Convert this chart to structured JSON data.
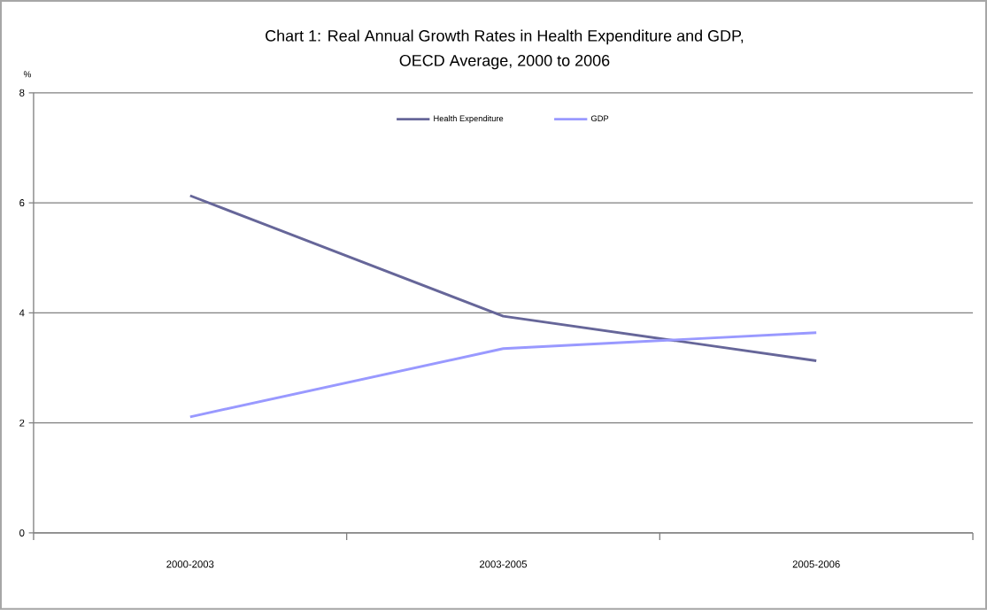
{
  "chart_data": {
    "type": "line",
    "title": "Chart 1: Real Annual Growth Rates in Health Expenditure and GDP,\nOECD Average, 2000 to 2006",
    "ylabel": "%",
    "categories": [
      "2000-2003",
      "2003-2005",
      "2005-2006"
    ],
    "series": [
      {
        "name": "Health Expenditure",
        "color": "#666699",
        "values": [
          6.13,
          3.94,
          3.13
        ]
      },
      {
        "name": "GDP",
        "color": "#9999ff",
        "values": [
          2.11,
          3.35,
          3.64
        ]
      }
    ],
    "ylim": [
      0,
      8
    ],
    "yticks": [
      0,
      2,
      4,
      6,
      8
    ],
    "grid": "y",
    "legend": "top",
    "marker": "none",
    "line_style": "solid"
  }
}
